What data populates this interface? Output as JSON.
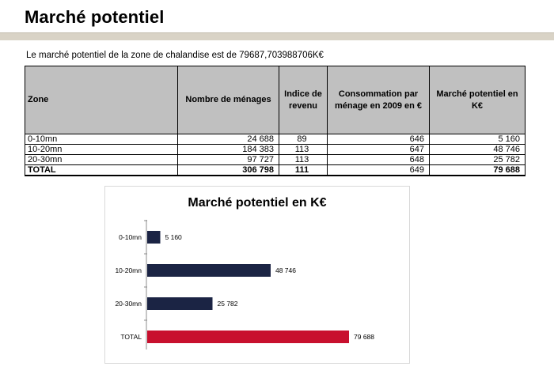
{
  "page": {
    "title": "Marché potentiel",
    "intro": "Le marché potentiel de la zone de chalandise est de 79687,703988706K€"
  },
  "table": {
    "headers": [
      "Zone",
      "Nombre de ménages",
      "Indice de revenu",
      "Consommation par ménage en 2009 en €",
      "Marché potentiel en K€"
    ],
    "rows": [
      [
        "0-10mn",
        "24 688",
        "89",
        "646",
        "5 160"
      ],
      [
        "10-20mn",
        "184 383",
        "113",
        "647",
        "48 746"
      ],
      [
        "20-30mn",
        "97 727",
        "113",
        "648",
        "25 782"
      ]
    ],
    "total": [
      "TOTAL",
      "306 798",
      "111",
      "649",
      "79 688"
    ]
  },
  "chart_data": {
    "type": "bar",
    "orientation": "horizontal",
    "title": "Marché potentiel en K€",
    "categories": [
      "0-10mn",
      "10-20mn",
      "20-30mn",
      "TOTAL"
    ],
    "values": [
      5160,
      48746,
      25782,
      79688
    ],
    "value_labels": [
      "5 160",
      "48 746",
      "25 782",
      "79 688"
    ],
    "colors": [
      "#1b2444",
      "#1b2444",
      "#1b2444",
      "#c8102e"
    ],
    "xlim": [
      0,
      100000
    ],
    "grid": false,
    "legend": "none"
  }
}
